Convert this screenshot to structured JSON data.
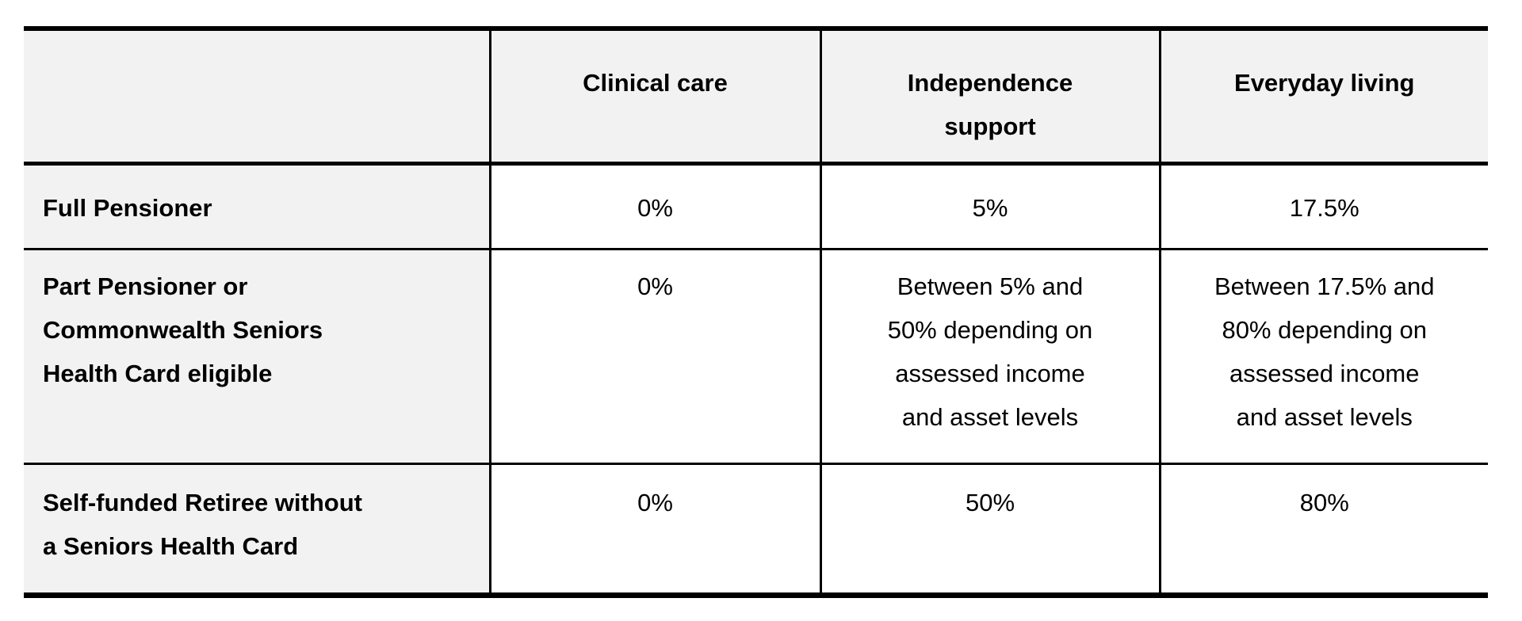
{
  "table": {
    "colors": {
      "header_bg": "#f2f2f2",
      "label_column_bg": "#f2f2f2",
      "border": "#000000",
      "page_bg": "#ffffff",
      "text": "#000000"
    },
    "header": {
      "corner": "",
      "clinical_care": "Clinical care",
      "independence_support": "Independence\nsupport",
      "everyday_living": "Everyday living"
    },
    "rows": {
      "full_pensioner": {
        "label": "Full Pensioner",
        "clinical_care": "0%",
        "independence_support": "5%",
        "everyday_living": "17.5%"
      },
      "part_pensioner": {
        "label": "Part Pensioner or\nCommonwealth Seniors\nHealth Card eligible",
        "clinical_care": "0%",
        "independence_support": "Between 5% and\n50% depending on\nassessed income\nand asset levels",
        "everyday_living": "Between 17.5% and\n80% depending on\nassessed income\nand asset levels"
      },
      "self_funded_retiree": {
        "label": "Self-funded Retiree without\na Seniors Health Card",
        "clinical_care": "0%",
        "independence_support": "50%",
        "everyday_living": "80%"
      }
    }
  }
}
